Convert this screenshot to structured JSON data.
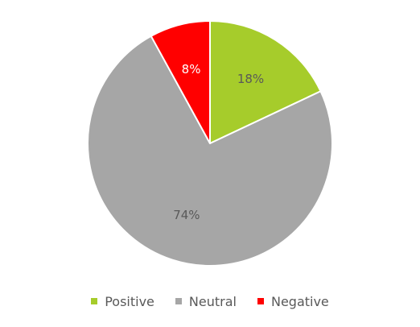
{
  "chart_data": {
    "type": "pie",
    "categories": [
      "Positive",
      "Neutral",
      "Negative"
    ],
    "values": [
      18,
      74,
      8
    ],
    "labels": [
      "18%",
      "74%",
      "8%"
    ],
    "colors": [
      "#a6cc2b",
      "#a6a6a6",
      "#ff0000"
    ],
    "label_colors": [
      "#595959",
      "#595959",
      "#ffffff"
    ],
    "start_angle_deg": 0,
    "direction": "clockwise",
    "legend_position": "bottom",
    "title": ""
  },
  "legend": {
    "items": [
      {
        "label": "Positive",
        "color": "#a6cc2b"
      },
      {
        "label": "Neutral",
        "color": "#a6a6a6"
      },
      {
        "label": "Negative",
        "color": "#ff0000"
      }
    ]
  }
}
